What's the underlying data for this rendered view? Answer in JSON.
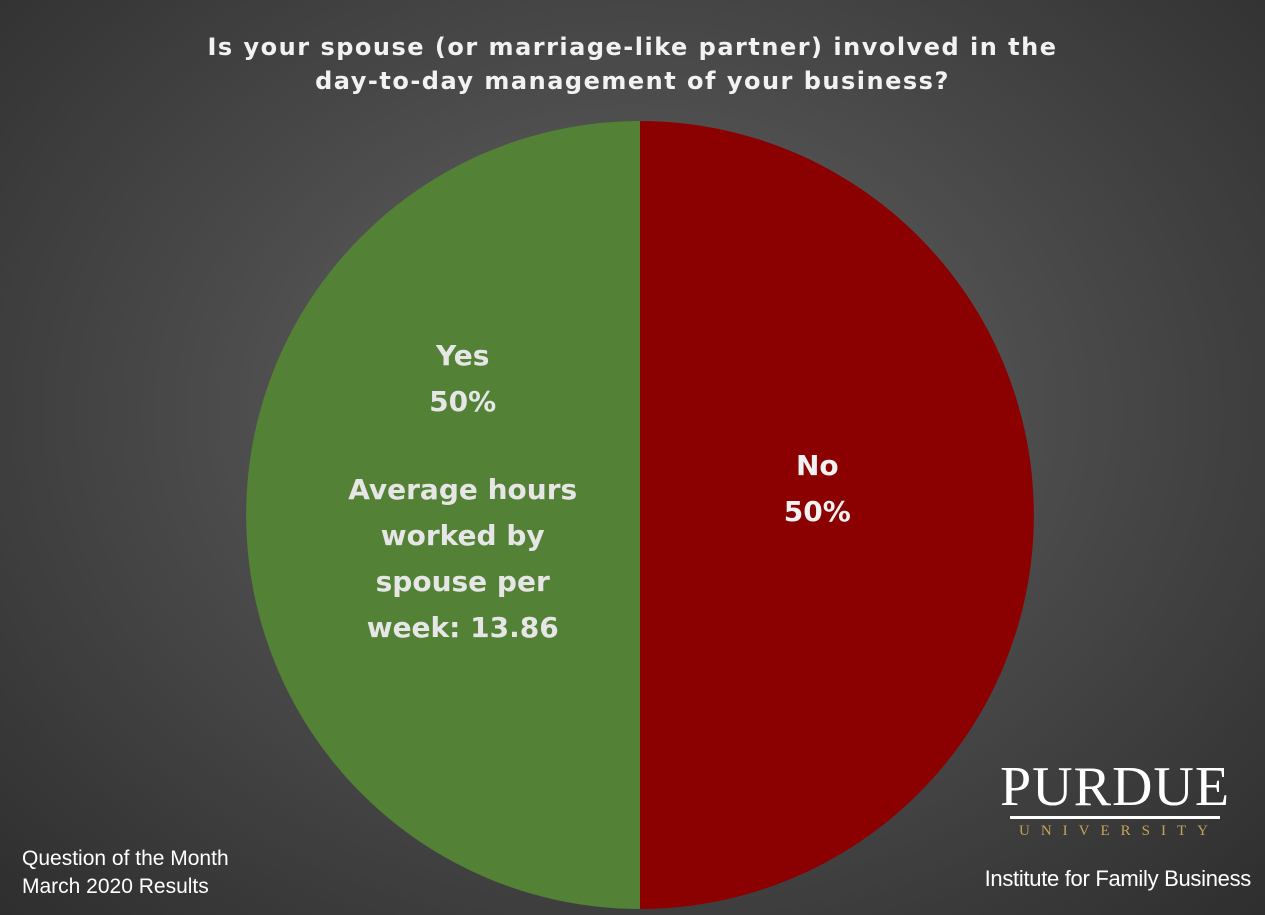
{
  "title_lines": [
    "Is your spouse (or marriage-like partner) involved in the",
    "day-to-day management of your business?"
  ],
  "chart_data": {
    "type": "pie",
    "title": "Is your spouse (or marriage-like partner) involved in the day-to-day management of your business?",
    "slices": [
      {
        "label": "No",
        "value": 50,
        "value_label": "50%",
        "color": "#8b0000",
        "annotation_lines": []
      },
      {
        "label": "Yes",
        "value": 50,
        "value_label": "50%",
        "color": "#538135",
        "annotation_lines": [
          "Average hours",
          "worked by",
          "spouse per",
          "week: 13.86"
        ]
      }
    ]
  },
  "footer": {
    "line1": "Question of the Month",
    "line2": "March 2020 Results"
  },
  "logo": {
    "name": "PURDUE",
    "sub": "UNIVERSITY",
    "institute": "Institute for Family Business"
  }
}
